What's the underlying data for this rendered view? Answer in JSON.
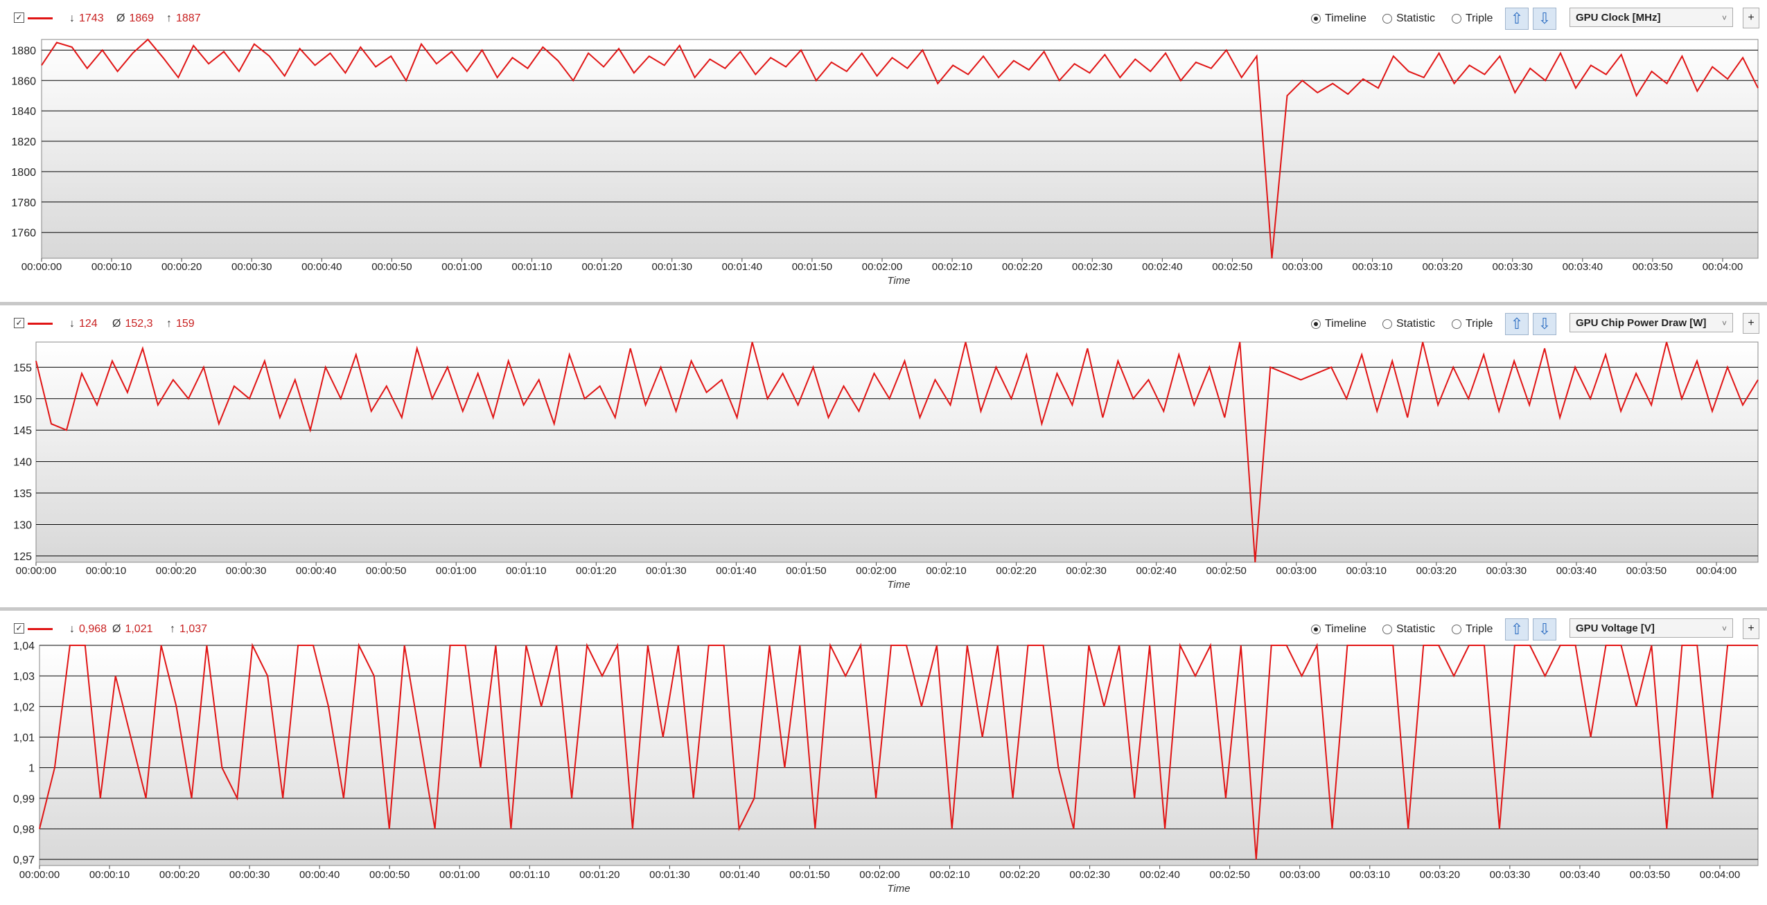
{
  "charts": [
    {
      "stats": {
        "min": "1743",
        "avg": "1869",
        "max": "1887"
      },
      "selector": "GPU Clock [MHz]",
      "xlabel": "Time"
    },
    {
      "stats": {
        "min": "124",
        "avg": "152,3",
        "max": "159"
      },
      "selector": "GPU Chip Power Draw [W]",
      "xlabel": "Time"
    },
    {
      "stats": {
        "min": "0,968",
        "avg": "1,021",
        "max": "1,037"
      },
      "selector": "GPU Voltage [V]",
      "xlabel": "Time"
    }
  ],
  "controls": {
    "timeline": "Timeline",
    "statistic": "Statistic",
    "triple": "Triple",
    "checkbox": "✓",
    "arrow_up": "⇧",
    "arrow_down": "⇩",
    "plus": "+",
    "caret": "˅",
    "sym_min": "↓",
    "sym_avg": "Ø",
    "sym_max": "↑"
  },
  "colors": {
    "series": "#e01414",
    "grid": "#000000",
    "panel_sep": "#c8c8c8"
  },
  "chart_data": [
    {
      "type": "line",
      "series": [
        {
          "values": [
            1870,
            1885,
            1882,
            1868,
            1880,
            1866,
            1878,
            1887,
            1875,
            1862,
            1883,
            1871,
            1879,
            1866,
            1884,
            1876,
            1863,
            1881,
            1870,
            1878,
            1865,
            1882,
            1869,
            1876,
            1860,
            1884,
            1871,
            1879,
            1866,
            1880,
            1862,
            1875,
            1868,
            1882,
            1873,
            1860,
            1878,
            1869,
            1881,
            1865,
            1876,
            1870,
            1883,
            1862,
            1874,
            1868,
            1879,
            1864,
            1875,
            1869,
            1880,
            1860,
            1872,
            1866,
            1878,
            1863,
            1875,
            1868,
            1880,
            1858,
            1870,
            1864,
            1876,
            1862,
            1873,
            1867,
            1879,
            1860,
            1871,
            1865,
            1877,
            1862,
            1874,
            1866,
            1878,
            1860,
            1872,
            1868,
            1880,
            1862,
            1876,
            1743,
            1850,
            1860,
            1852,
            1858,
            1851,
            1861,
            1855,
            1876,
            1866,
            1862,
            1878,
            1858,
            1870,
            1864,
            1876,
            1852,
            1868,
            1860,
            1878,
            1855,
            1870,
            1864,
            1877,
            1850,
            1866,
            1858,
            1876,
            1853,
            1869,
            1861,
            1875,
            1855
          ]
        }
      ],
      "xlabel": "Time",
      "ylim": [
        1743,
        1887
      ],
      "yticks": [
        1760,
        1780,
        1800,
        1820,
        1840,
        1860,
        1880
      ],
      "xticks": [
        "00:00:00",
        "00:00:10",
        "00:00:20",
        "00:00:30",
        "00:00:40",
        "00:00:50",
        "00:01:00",
        "00:01:10",
        "00:01:20",
        "00:01:30",
        "00:01:40",
        "00:01:50",
        "00:02:00",
        "00:02:10",
        "00:02:20",
        "00:02:30",
        "00:02:40",
        "00:02:50",
        "00:03:00",
        "00:03:10",
        "00:03:20",
        "00:03:30",
        "00:03:40",
        "00:03:50",
        "00:04:00"
      ],
      "x_seconds_span": 248,
      "grid": true
    },
    {
      "type": "line",
      "series": [
        {
          "values": [
            156,
            146,
            145,
            154,
            149,
            156,
            151,
            158,
            149,
            153,
            150,
            155,
            146,
            152,
            150,
            156,
            147,
            153,
            145,
            155,
            150,
            157,
            148,
            152,
            147,
            158,
            150,
            155,
            148,
            154,
            147,
            156,
            149,
            153,
            146,
            157,
            150,
            152,
            147,
            158,
            149,
            155,
            148,
            156,
            151,
            153,
            147,
            159,
            150,
            154,
            149,
            155,
            147,
            152,
            148,
            154,
            150,
            156,
            147,
            153,
            149,
            159,
            148,
            155,
            150,
            157,
            146,
            154,
            149,
            158,
            147,
            156,
            150,
            153,
            148,
            157,
            149,
            155,
            147,
            159,
            124,
            155,
            154,
            153,
            154,
            155,
            150,
            157,
            148,
            156,
            147,
            159,
            149,
            155,
            150,
            157,
            148,
            156,
            149,
            158,
            147,
            155,
            150,
            157,
            148,
            154,
            149,
            159,
            150,
            156,
            148,
            155,
            149,
            153
          ]
        }
      ],
      "xlabel": "Time",
      "ylim": [
        124,
        159
      ],
      "yticks": [
        125,
        130,
        135,
        140,
        145,
        150,
        155
      ],
      "xticks": [
        "00:00:00",
        "00:00:10",
        "00:00:20",
        "00:00:30",
        "00:00:40",
        "00:00:50",
        "00:01:00",
        "00:01:10",
        "00:01:20",
        "00:01:30",
        "00:01:40",
        "00:01:50",
        "00:02:00",
        "00:02:10",
        "00:02:20",
        "00:02:30",
        "00:02:40",
        "00:02:50",
        "00:03:00",
        "00:03:10",
        "00:03:20",
        "00:03:30",
        "00:03:40",
        "00:03:50",
        "00:04:00"
      ],
      "x_seconds_span": 248,
      "grid": true
    },
    {
      "type": "line",
      "series": [
        {
          "values": [
            0.98,
            1.0,
            1.04,
            1.04,
            0.99,
            1.03,
            1.01,
            0.99,
            1.04,
            1.02,
            0.99,
            1.04,
            1.0,
            0.99,
            1.04,
            1.03,
            0.99,
            1.04,
            1.04,
            1.02,
            0.99,
            1.04,
            1.03,
            0.98,
            1.04,
            1.01,
            0.98,
            1.04,
            1.04,
            1.0,
            1.04,
            0.98,
            1.04,
            1.02,
            1.04,
            0.99,
            1.04,
            1.03,
            1.04,
            0.98,
            1.04,
            1.01,
            1.04,
            0.99,
            1.04,
            1.04,
            0.98,
            0.99,
            1.04,
            1.0,
            1.04,
            0.98,
            1.04,
            1.03,
            1.04,
            0.99,
            1.04,
            1.04,
            1.02,
            1.04,
            0.98,
            1.04,
            1.01,
            1.04,
            0.99,
            1.04,
            1.04,
            1.0,
            0.98,
            1.04,
            1.02,
            1.04,
            0.99,
            1.04,
            0.98,
            1.04,
            1.03,
            1.04,
            0.99,
            1.04,
            0.97,
            1.04,
            1.04,
            1.03,
            1.04,
            0.98,
            1.04,
            1.04,
            1.04,
            1.04,
            0.98,
            1.04,
            1.04,
            1.03,
            1.04,
            1.04,
            0.98,
            1.04,
            1.04,
            1.03,
            1.04,
            1.04,
            1.01,
            1.04,
            1.04,
            1.02,
            1.04,
            0.98,
            1.04,
            1.04,
            0.99,
            1.04,
            1.04,
            1.04
          ]
        }
      ],
      "xlabel": "Time",
      "ylim": [
        0.968,
        1.04
      ],
      "yticks": [
        "0,97",
        "0,98",
        "0,99",
        "1",
        "1,01",
        "1,02",
        "1,03",
        "1,04"
      ],
      "xticks": [
        "00:00:00",
        "00:00:10",
        "00:00:20",
        "00:00:30",
        "00:00:40",
        "00:00:50",
        "00:01:00",
        "00:01:10",
        "00:01:20",
        "00:01:30",
        "00:01:40",
        "00:01:50",
        "00:02:00",
        "00:02:10",
        "00:02:20",
        "00:02:30",
        "00:02:40",
        "00:02:50",
        "00:03:00",
        "00:03:10",
        "00:03:20",
        "00:03:30",
        "00:03:40",
        "00:03:50",
        "00:04:00"
      ],
      "x_seconds_span": 248,
      "grid": true
    }
  ]
}
